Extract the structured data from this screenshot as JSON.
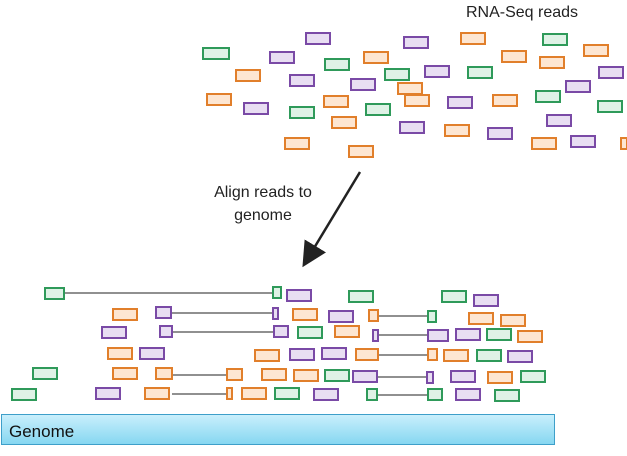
{
  "labels": {
    "top_title": "RNA-Seq reads",
    "align_line1": "Align reads to",
    "align_line2": "genome",
    "genome": "Genome"
  },
  "colors": {
    "green": "#2f9a5a",
    "orange": "#e17f2b",
    "purple": "#7a4aa6",
    "green_fill": "#dff2e6",
    "orange_fill": "#fde6d2",
    "purple_fill": "#e8def2",
    "arrow": "#222222",
    "genome_fill_top": "#c9effc",
    "genome_fill_bottom": "#86d7f1",
    "genome_border": "#3e9fc9"
  }
}
